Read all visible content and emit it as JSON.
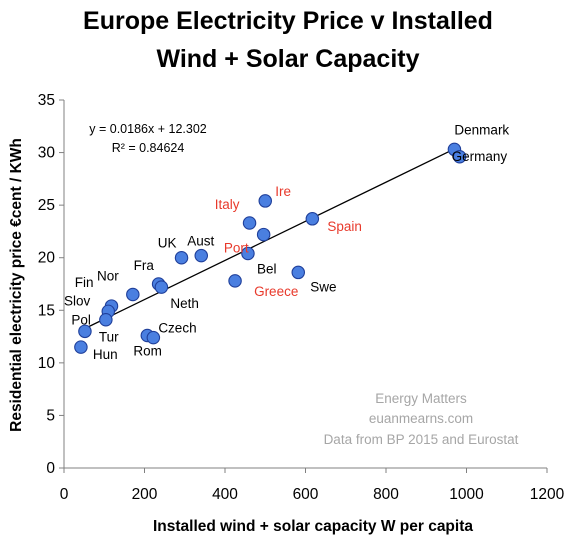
{
  "chart_data": {
    "type": "scatter",
    "title_line1": "Europe Electricity Price v Installed",
    "title_line2": "Wind + Solar Capacity",
    "xlabel": "Installed wind + solar capacity W per capita",
    "ylabel": "Residential electricity price €cent / KWh",
    "xlim": [
      0,
      1200
    ],
    "ylim": [
      0,
      35
    ],
    "x_ticks": [
      0,
      200,
      400,
      600,
      800,
      1000,
      1200
    ],
    "y_ticks": [
      0,
      5,
      10,
      15,
      20,
      25,
      30,
      35
    ],
    "grid": false,
    "point_color": "#4a7fe0",
    "highlight_label_color": "#e8392b",
    "normal_label_color": "#000000",
    "points": [
      {
        "label": "Denmark",
        "x": 970,
        "y": 30.3,
        "highlight": false
      },
      {
        "label": "Germany",
        "x": 983,
        "y": 29.6,
        "highlight": false
      },
      {
        "label": "Ire",
        "x": 500,
        "y": 25.4,
        "highlight": true
      },
      {
        "label": "Italy",
        "x": 461,
        "y": 23.3,
        "highlight": true
      },
      {
        "label": "Spain",
        "x": 617,
        "y": 23.7,
        "highlight": true
      },
      {
        "label": "Port",
        "x": 496,
        "y": 22.2,
        "highlight": true
      },
      {
        "label": "UK",
        "x": 292,
        "y": 20.0,
        "highlight": false
      },
      {
        "label": "Aust",
        "x": 341,
        "y": 20.2,
        "highlight": false
      },
      {
        "label": "Bel",
        "x": 457,
        "y": 20.4,
        "highlight": false
      },
      {
        "label": "Greece",
        "x": 425,
        "y": 17.8,
        "highlight": true
      },
      {
        "label": "Swe",
        "x": 582,
        "y": 18.6,
        "highlight": false
      },
      {
        "label": "Fra",
        "x": 235,
        "y": 17.5,
        "highlight": false
      },
      {
        "label": "Neth",
        "x": 242,
        "y": 17.2,
        "highlight": false
      },
      {
        "label": "Nor",
        "x": 171,
        "y": 16.5,
        "highlight": false
      },
      {
        "label": "Fin",
        "x": 118,
        "y": 15.4,
        "highlight": false
      },
      {
        "label": "Slov",
        "x": 110,
        "y": 14.9,
        "highlight": false
      },
      {
        "label": "Pol",
        "x": 104,
        "y": 14.1,
        "highlight": false
      },
      {
        "label": "Tur",
        "x": 52,
        "y": 13.0,
        "highlight": false
      },
      {
        "label": "Czech",
        "x": 207,
        "y": 12.6,
        "highlight": false
      },
      {
        "label": "Rom",
        "x": 222,
        "y": 12.4,
        "highlight": false
      },
      {
        "label": "Hun",
        "x": 42,
        "y": 11.5,
        "highlight": false
      }
    ],
    "trendline": {
      "slope": 0.0186,
      "intercept": 12.302,
      "x_from": 50,
      "x_to": 975
    },
    "equation_text": "y = 0.0186x + 12.302",
    "r2_text": "R² = 0.84624",
    "credits": [
      "Energy Matters",
      "euanmearns.com",
      "Data from BP 2015 and Eurostat"
    ]
  }
}
